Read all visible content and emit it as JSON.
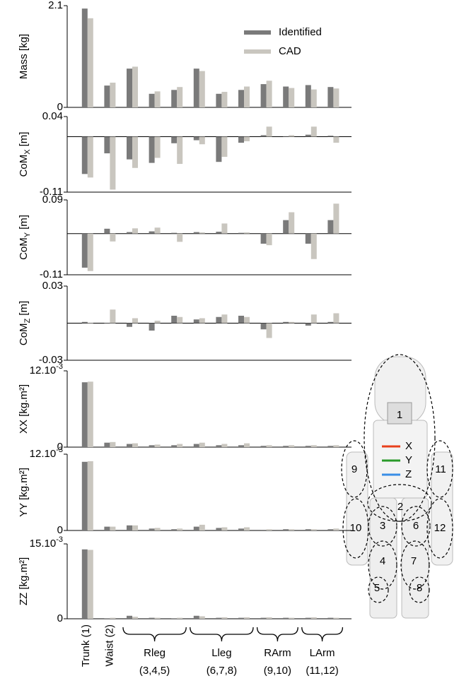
{
  "chart_data": [
    {
      "type": "bar",
      "ylabel": "Mass [kg]",
      "ylim": [
        0,
        2.1
      ],
      "yticks": [
        0,
        2.1
      ],
      "legend": "upper right",
      "series": [
        {
          "name": "Identified",
          "color": "#7a7a7a",
          "values": [
            2.04,
            0.45,
            0.8,
            0.28,
            0.36,
            0.8,
            0.28,
            0.36,
            0.48,
            0.43,
            0.46,
            0.42
          ]
        },
        {
          "name": "CAD",
          "color": "#c9c6bf",
          "values": [
            1.84,
            0.51,
            0.84,
            0.33,
            0.42,
            0.75,
            0.32,
            0.43,
            0.55,
            0.4,
            0.37,
            0.39
          ]
        }
      ]
    },
    {
      "type": "bar",
      "ylabel": "CoM",
      "ylabel_sub": "X",
      "ylabel_unit": "[m]",
      "ylim": [
        -0.11,
        0.04
      ],
      "yticks": [
        -0.11,
        0.04
      ],
      "series": [
        {
          "color": "#7a7a7a",
          "values": [
            -0.074,
            -0.033,
            -0.045,
            -0.052,
            -0.013,
            -0.007,
            -0.05,
            -0.012,
            0.003,
            0.001,
            0.004,
            0.002
          ]
        },
        {
          "color": "#c9c6bf",
          "values": [
            -0.081,
            -0.105,
            -0.062,
            -0.042,
            -0.054,
            -0.015,
            -0.04,
            -0.009,
            0.02,
            0.003,
            0.02,
            -0.012
          ]
        }
      ]
    },
    {
      "type": "bar",
      "ylabel": "CoM",
      "ylabel_sub": "Y",
      "ylabel_unit": "[m]",
      "ylim": [
        -0.11,
        0.09
      ],
      "yticks": [
        -0.11,
        0.09
      ],
      "series": [
        {
          "color": "#7a7a7a",
          "values": [
            -0.091,
            0.013,
            0.004,
            0.006,
            0.002,
            0.004,
            0.005,
            0.002,
            -0.027,
            0.036,
            -0.027,
            0.036
          ]
        },
        {
          "color": "#c9c6bf",
          "values": [
            -0.1,
            -0.021,
            0.014,
            0.016,
            -0.022,
            0.003,
            0.027,
            0.003,
            -0.031,
            0.057,
            -0.068,
            0.08
          ]
        }
      ]
    },
    {
      "type": "bar",
      "ylabel": "CoM",
      "ylabel_sub": "Z",
      "ylabel_unit": "[m]",
      "ylim": [
        -0.03,
        0.03
      ],
      "yticks": [
        -0.03,
        0.03
      ],
      "series": [
        {
          "color": "#7a7a7a",
          "values": [
            0.001,
            0.0,
            -0.003,
            -0.006,
            0.006,
            0.003,
            0.005,
            0.006,
            -0.005,
            0.001,
            -0.002,
            0.001
          ]
        },
        {
          "color": "#c9c6bf",
          "values": [
            0.0,
            0.011,
            0.004,
            0.002,
            0.005,
            0.004,
            0.007,
            0.005,
            -0.012,
            0.001,
            0.007,
            0.008
          ]
        }
      ]
    },
    {
      "type": "bar",
      "ylabel": "XX [kg.m²]",
      "ylim": [
        0,
        0.012
      ],
      "yticks": [
        0,
        {
          "value": 0.012,
          "label": "12.10",
          "label_sup": "-3"
        }
      ],
      "series": [
        {
          "color": "#7a7a7a",
          "values": [
            0.0102,
            0.0007,
            0.0005,
            0.0003,
            0.0003,
            0.0005,
            0.0003,
            0.0003,
            0.0002,
            0.0002,
            0.0002,
            0.0002
          ]
        },
        {
          "color": "#c9c6bf",
          "values": [
            0.0103,
            0.0008,
            0.0006,
            0.0004,
            0.0005,
            0.0007,
            0.0005,
            0.0006,
            0.0003,
            0.0003,
            0.0003,
            0.0003
          ]
        }
      ]
    },
    {
      "type": "bar",
      "ylabel": "YY [kg.m²]",
      "ylim": [
        0,
        0.012
      ],
      "yticks": [
        0,
        {
          "value": 0.012,
          "label": "12.10",
          "label_sup": "-3"
        }
      ],
      "series": [
        {
          "color": "#7a7a7a",
          "values": [
            0.0108,
            0.0006,
            0.0008,
            0.0003,
            0.0002,
            0.0006,
            0.0004,
            0.0003,
            0.0001,
            0.0002,
            0.0002,
            0.0002
          ]
        },
        {
          "color": "#c9c6bf",
          "values": [
            0.0109,
            0.0006,
            0.0008,
            0.0004,
            0.0003,
            0.0009,
            0.0005,
            0.0005,
            0.0002,
            0.0002,
            0.0002,
            0.0003
          ]
        }
      ]
    },
    {
      "type": "bar",
      "ylabel": "ZZ [kg.m²]",
      "ylim": [
        0,
        0.015
      ],
      "yticks": [
        0,
        {
          "value": 0.015,
          "label": "15.10",
          "label_sup": "-3"
        }
      ],
      "categories": [
        "Trunk (1)",
        "Waist (2)",
        null,
        null,
        null,
        null,
        null,
        null,
        null,
        null,
        null,
        null
      ],
      "groups": [
        {
          "name": "Rleg",
          "label": "(3,4,5)",
          "count": 3
        },
        {
          "name": "Lleg",
          "label": "(6,7,8)",
          "count": 3
        },
        {
          "name": "RArm",
          "label": "(9,10)",
          "count": 2
        },
        {
          "name": "LArm",
          "label": "(11,12)",
          "count": 2
        }
      ],
      "series": [
        {
          "color": "#7a7a7a",
          "values": [
            0.0139,
            0.0001,
            0.0006,
            0.0002,
            0.0001,
            0.0006,
            0.0002,
            0.0002,
            0.0002,
            0.0002,
            0.0002,
            0.0002
          ]
        },
        {
          "color": "#c9c6bf",
          "values": [
            0.0138,
            0.0002,
            0.0004,
            0.0002,
            0.0002,
            0.0005,
            0.0003,
            0.0003,
            0.0003,
            0.0002,
            0.0003,
            0.0002
          ]
        }
      ]
    }
  ],
  "robot_figure": {
    "labels": [
      "1",
      "2",
      "3",
      "4",
      "5",
      "6",
      "7",
      "8",
      "9",
      "10",
      "11",
      "12"
    ],
    "axes": [
      {
        "name": "X",
        "color": "#e8401c"
      },
      {
        "name": "Y",
        "color": "#2a9a2a"
      },
      {
        "name": "Z",
        "color": "#3a8ee6"
      }
    ]
  }
}
